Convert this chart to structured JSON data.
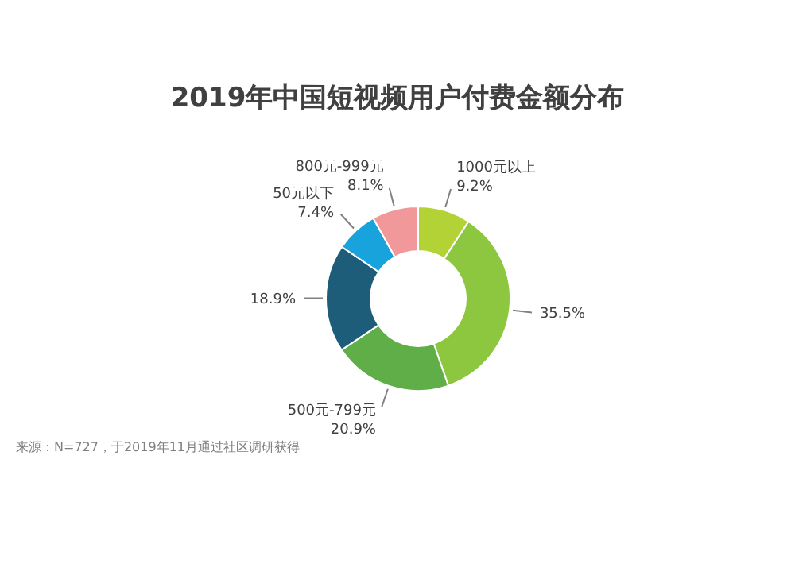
{
  "chart_data": {
    "type": "donut",
    "title": "2019年中国短视频用户付费金额分布",
    "categories": [
      "1000元以上",
      null,
      "500元-799元",
      null,
      "50元以下",
      "800元-999元"
    ],
    "values": [
      9.2,
      35.5,
      20.9,
      18.9,
      7.4,
      8.1
    ],
    "value_labels": [
      "9.2%",
      "35.5%",
      "20.9%",
      "18.9%",
      "7.4%",
      "8.1%"
    ],
    "colors": [
      "#b3d236",
      "#8dc63f",
      "#5fae48",
      "#1d5d79",
      "#19a3dc",
      "#f1989a"
    ],
    "legend": false,
    "annotations": [
      "来源：N=727，于2019年11月通过社区调研获得"
    ]
  }
}
